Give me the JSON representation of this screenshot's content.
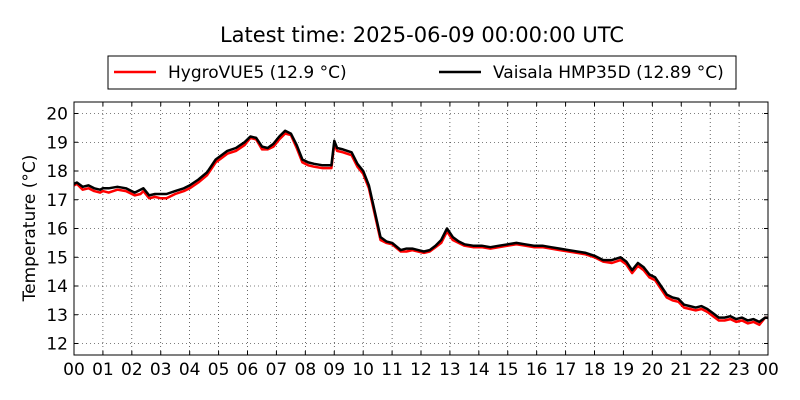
{
  "chart_data": {
    "type": "line",
    "title": "Latest time: 2025-06-09 00:00:00 UTC",
    "xlabel": "",
    "ylabel": "Temperature (°C)",
    "xlim": [
      0,
      24
    ],
    "ylim": [
      11.6,
      20.4
    ],
    "x_ticks": [
      0,
      1,
      2,
      3,
      4,
      5,
      6,
      7,
      8,
      9,
      10,
      11,
      12,
      13,
      14,
      15,
      16,
      17,
      18,
      19,
      20,
      21,
      22,
      23,
      24
    ],
    "x_tick_labels": [
      "00",
      "01",
      "02",
      "03",
      "04",
      "05",
      "06",
      "07",
      "08",
      "09",
      "10",
      "11",
      "12",
      "13",
      "14",
      "15",
      "16",
      "17",
      "18",
      "19",
      "20",
      "21",
      "22",
      "23",
      "00"
    ],
    "y_ticks": [
      12,
      13,
      14,
      15,
      16,
      17,
      18,
      19,
      20
    ],
    "y_tick_labels": [
      "12",
      "13",
      "14",
      "15",
      "16",
      "17",
      "18",
      "19",
      "20"
    ],
    "grid": true,
    "legend_position": "top",
    "series": [
      {
        "name": "HygroVUE5 (12.9 °C)",
        "color": "#ff0000",
        "x": [
          0,
          0.1,
          0.3,
          0.5,
          0.7,
          0.9,
          1.0,
          1.2,
          1.5,
          1.8,
          2.1,
          2.3,
          2.4,
          2.6,
          2.8,
          3.0,
          3.2,
          3.5,
          3.8,
          4.0,
          4.3,
          4.6,
          4.9,
          5.1,
          5.3,
          5.6,
          5.9,
          6.1,
          6.3,
          6.5,
          6.7,
          6.9,
          7.1,
          7.3,
          7.5,
          7.7,
          7.9,
          8.1,
          8.3,
          8.6,
          8.9,
          9.0,
          9.1,
          9.3,
          9.6,
          9.8,
          10.0,
          10.2,
          10.4,
          10.6,
          10.8,
          11.0,
          11.3,
          11.5,
          11.7,
          11.9,
          12.1,
          12.3,
          12.5,
          12.7,
          12.9,
          13.1,
          13.3,
          13.5,
          13.8,
          14.1,
          14.4,
          14.7,
          15.0,
          15.3,
          15.6,
          15.9,
          16.2,
          16.5,
          16.8,
          17.1,
          17.4,
          17.7,
          18.0,
          18.3,
          18.6,
          18.9,
          19.1,
          19.3,
          19.5,
          19.7,
          19.9,
          20.1,
          20.3,
          20.5,
          20.7,
          20.9,
          21.1,
          21.3,
          21.5,
          21.7,
          21.9,
          22.1,
          22.3,
          22.5,
          22.7,
          22.9,
          23.1,
          23.3,
          23.5,
          23.7,
          23.9,
          24.0
        ],
        "values": [
          17.5,
          17.55,
          17.35,
          17.4,
          17.3,
          17.25,
          17.3,
          17.25,
          17.35,
          17.3,
          17.15,
          17.2,
          17.3,
          17.05,
          17.1,
          17.05,
          17.05,
          17.2,
          17.3,
          17.4,
          17.6,
          17.85,
          18.3,
          18.45,
          18.6,
          18.7,
          18.9,
          19.15,
          19.1,
          18.75,
          18.75,
          18.85,
          19.1,
          19.3,
          19.25,
          18.8,
          18.3,
          18.2,
          18.15,
          18.1,
          18.1,
          18.95,
          18.7,
          18.65,
          18.55,
          18.15,
          17.9,
          17.4,
          16.5,
          15.6,
          15.5,
          15.45,
          15.2,
          15.2,
          15.25,
          15.2,
          15.15,
          15.2,
          15.35,
          15.5,
          15.9,
          15.6,
          15.5,
          15.4,
          15.35,
          15.35,
          15.3,
          15.35,
          15.4,
          15.45,
          15.4,
          15.35,
          15.35,
          15.3,
          15.25,
          15.2,
          15.15,
          15.1,
          15.0,
          14.85,
          14.8,
          14.9,
          14.75,
          14.45,
          14.7,
          14.55,
          14.3,
          14.2,
          13.9,
          13.6,
          13.5,
          13.45,
          13.25,
          13.2,
          13.15,
          13.2,
          13.1,
          12.95,
          12.8,
          12.8,
          12.85,
          12.75,
          12.8,
          12.7,
          12.75,
          12.65,
          12.9,
          12.9
        ]
      },
      {
        "name": "Vaisala HMP35D (12.89 °C)",
        "color": "#000000",
        "x": [
          0,
          0.1,
          0.3,
          0.5,
          0.7,
          0.9,
          1.0,
          1.2,
          1.5,
          1.8,
          2.1,
          2.3,
          2.4,
          2.6,
          2.8,
          3.0,
          3.2,
          3.5,
          3.8,
          4.0,
          4.3,
          4.6,
          4.9,
          5.1,
          5.3,
          5.6,
          5.9,
          6.1,
          6.3,
          6.5,
          6.7,
          6.9,
          7.1,
          7.3,
          7.5,
          7.7,
          7.9,
          8.1,
          8.3,
          8.6,
          8.9,
          9.0,
          9.1,
          9.3,
          9.6,
          9.8,
          10.0,
          10.2,
          10.4,
          10.6,
          10.8,
          11.0,
          11.3,
          11.5,
          11.7,
          11.9,
          12.1,
          12.3,
          12.5,
          12.7,
          12.9,
          13.1,
          13.3,
          13.5,
          13.8,
          14.1,
          14.4,
          14.7,
          15.0,
          15.3,
          15.6,
          15.9,
          16.2,
          16.5,
          16.8,
          17.1,
          17.4,
          17.7,
          18.0,
          18.3,
          18.6,
          18.9,
          19.1,
          19.3,
          19.5,
          19.7,
          19.9,
          20.1,
          20.3,
          20.5,
          20.7,
          20.9,
          21.1,
          21.3,
          21.5,
          21.7,
          21.9,
          22.1,
          22.3,
          22.5,
          22.7,
          22.9,
          23.1,
          23.3,
          23.5,
          23.7,
          23.9,
          24.0
        ],
        "values": [
          17.55,
          17.6,
          17.45,
          17.5,
          17.4,
          17.35,
          17.4,
          17.4,
          17.45,
          17.4,
          17.25,
          17.35,
          17.4,
          17.15,
          17.2,
          17.2,
          17.2,
          17.3,
          17.4,
          17.5,
          17.7,
          17.95,
          18.4,
          18.55,
          18.7,
          18.8,
          19.0,
          19.2,
          19.15,
          18.85,
          18.8,
          18.95,
          19.2,
          19.4,
          19.3,
          18.9,
          18.4,
          18.3,
          18.25,
          18.2,
          18.2,
          19.05,
          18.8,
          18.75,
          18.65,
          18.25,
          18.0,
          17.5,
          16.6,
          15.7,
          15.55,
          15.5,
          15.25,
          15.3,
          15.3,
          15.25,
          15.2,
          15.25,
          15.4,
          15.6,
          16.0,
          15.7,
          15.55,
          15.45,
          15.4,
          15.4,
          15.35,
          15.4,
          15.45,
          15.5,
          15.45,
          15.4,
          15.4,
          15.35,
          15.3,
          15.25,
          15.2,
          15.15,
          15.05,
          14.9,
          14.9,
          15.0,
          14.85,
          14.55,
          14.8,
          14.65,
          14.4,
          14.3,
          14.0,
          13.7,
          13.6,
          13.55,
          13.35,
          13.3,
          13.25,
          13.3,
          13.2,
          13.05,
          12.9,
          12.9,
          12.95,
          12.85,
          12.9,
          12.8,
          12.85,
          12.75,
          12.9,
          12.89
        ]
      }
    ]
  }
}
